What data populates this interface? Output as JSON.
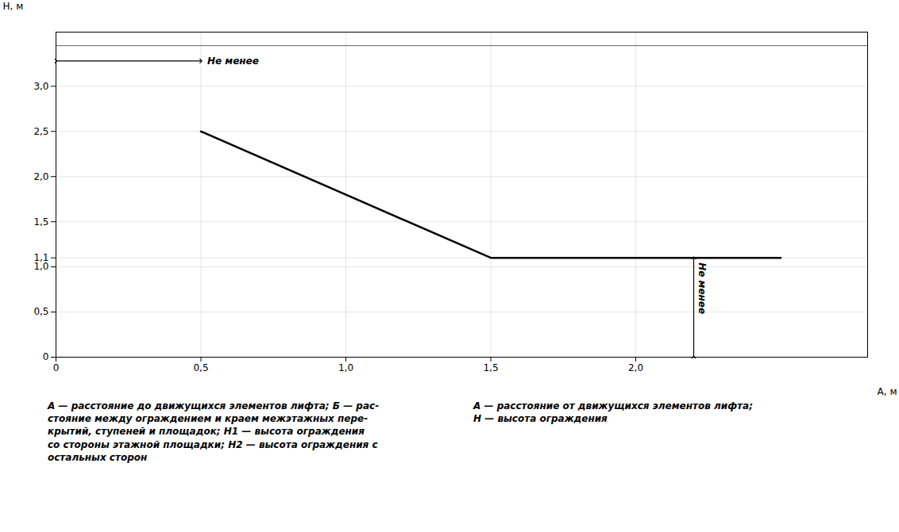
{
  "chart_data": {
    "type": "line",
    "x": [
      0.5,
      1.5,
      2.5
    ],
    "values": [
      2.5,
      1.1,
      1.1
    ],
    "xlabel": "A, м",
    "ylabel": "H, м",
    "xlim": [
      0,
      2.8
    ],
    "ylim": [
      0,
      3.6
    ],
    "xticks": [
      0,
      {
        "value": 0.5,
        "label": "0,5"
      },
      {
        "value": 1.0,
        "label": "1,0"
      },
      {
        "value": 1.5,
        "label": "1,5"
      },
      {
        "value": 2.0,
        "label": "2,0"
      }
    ],
    "yticks": [
      0,
      {
        "value": 0.5,
        "label": "0,5"
      },
      {
        "value": 1.0,
        "label": "1,0"
      },
      {
        "value": 1.1,
        "label": "1,1"
      },
      {
        "value": 1.5,
        "label": "1,5"
      },
      {
        "value": 2.0,
        "label": "2,0"
      },
      {
        "value": 2.5,
        "label": "2,5"
      },
      {
        "value": 3.0,
        "label": "3,0"
      }
    ],
    "grid": true,
    "hlines": [
      3.45
    ],
    "annotations": [
      {
        "text": "Не менее",
        "x1": 0,
        "y1": 3.28,
        "x2": 0.5,
        "y2": 3.28
      },
      {
        "text": "Не менее",
        "x1": 2.2,
        "y1": 0,
        "x2": 2.2,
        "y2": 1.1
      }
    ],
    "captions": [
      "A — расстояние до движущихся элементов лифта; Б — рас-\nстояние между ограждением и краем межэтажных пере-\nкрытий, ступеней и площадок; H1 — высота ограждения\nсо стороны этажной площадки; H2 — высота ограждения с\nостальных сторон",
      "A — расстояние от движущихся элементов лифта;\nH — высота ограждения"
    ]
  }
}
